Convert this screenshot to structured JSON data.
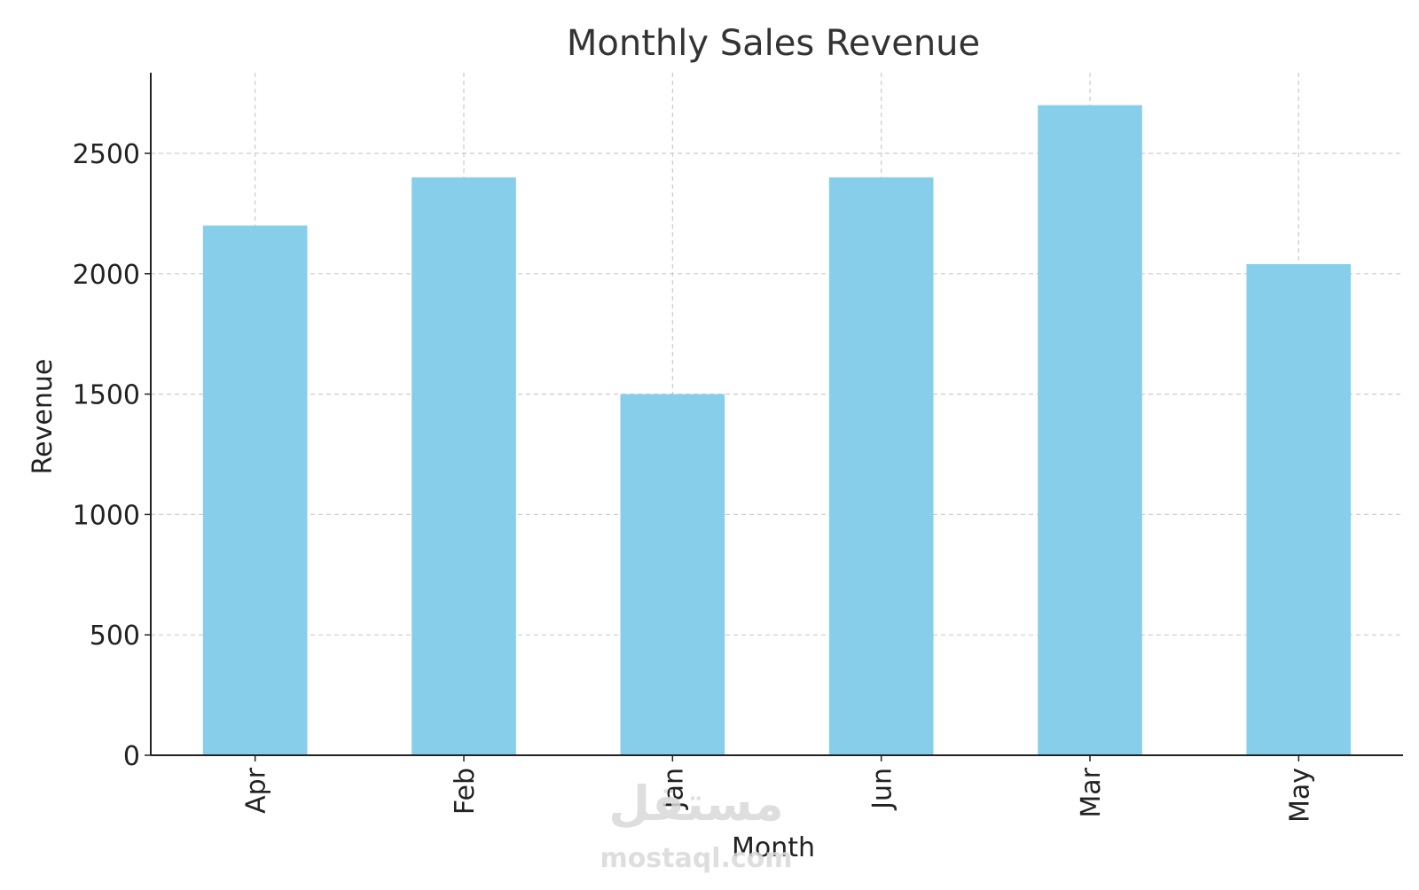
{
  "chart_data": {
    "type": "bar",
    "title": "Monthly Sales Revenue",
    "xlabel": "Month",
    "ylabel": "Revenue",
    "categories": [
      "Apr",
      "Feb",
      "Jan",
      "Jun",
      "Mar",
      "May"
    ],
    "values": [
      2200,
      2400,
      1500,
      2400,
      2700,
      2040
    ],
    "ylim": [
      0,
      2835
    ],
    "yticks": [
      0,
      500,
      1000,
      1500,
      2000,
      2500
    ],
    "grid": true,
    "bar_color": "#87CEEB",
    "axis_color": "#222222",
    "grid_color": "#cccccc",
    "text_color": "#222222",
    "title_color": "#333333"
  },
  "watermark": {
    "arabic": "مستقل",
    "latin": "mostaql.com",
    "color": "#d9d9d9"
  }
}
